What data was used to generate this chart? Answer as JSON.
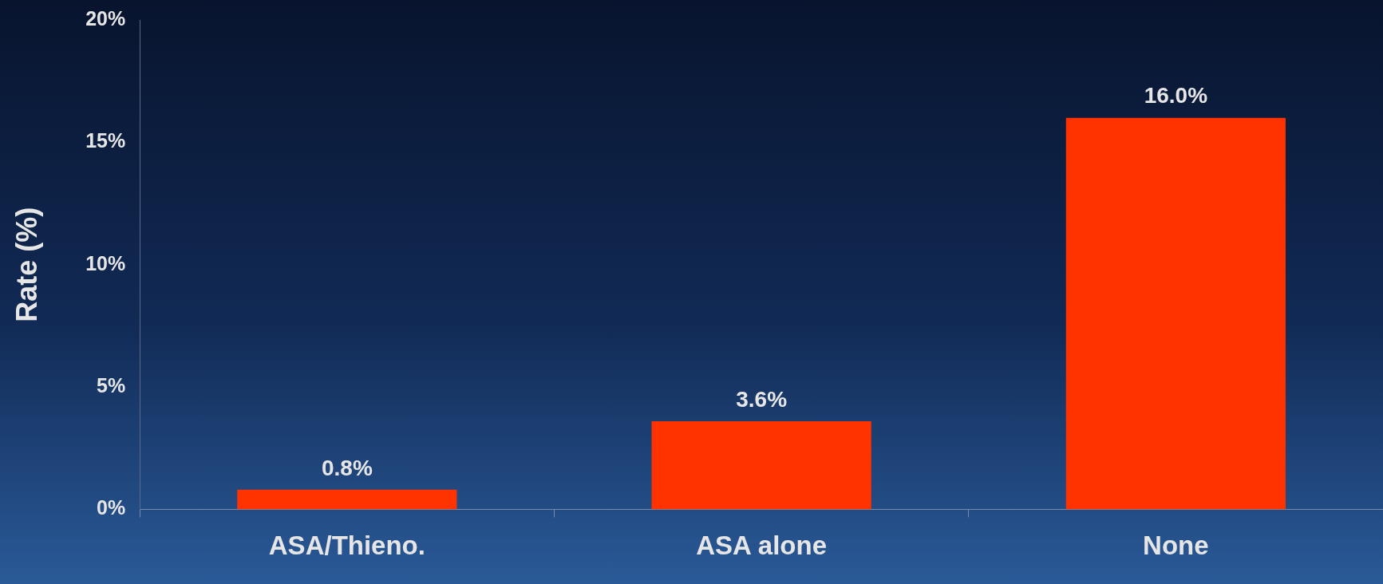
{
  "chart_data": {
    "type": "bar",
    "ylabel": "Rate (%)",
    "categories": [
      "ASA/Thieno.",
      "ASA alone",
      "None"
    ],
    "values": [
      0.8,
      3.6,
      16.0
    ],
    "color": "#ff3300",
    "value_labels": [
      "0.8%",
      "3.6%",
      "16.0%"
    ],
    "ylim": [
      0,
      20
    ],
    "yticks": [
      {
        "value": 0,
        "label": "0%"
      },
      {
        "value": 5,
        "label": "5%"
      },
      {
        "value": 10,
        "label": "10%"
      },
      {
        "value": 15,
        "label": "15%"
      },
      {
        "value": 20,
        "label": "20%"
      }
    ],
    "grid": false,
    "legend": false
  }
}
